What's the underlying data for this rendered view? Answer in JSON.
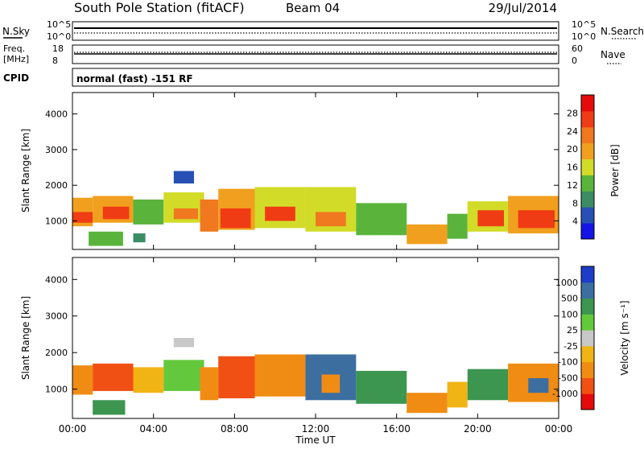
{
  "header": {
    "station": "South Pole Station (fitACF)",
    "beam": "Beam 04",
    "date": "29/Jul/2014"
  },
  "top_panels": {
    "nsky_label": "N.Sky",
    "nsearch_label": "N.Search",
    "nsky_ticks": [
      "10^5",
      "10^0"
    ],
    "nsearch_ticks": [
      "10^5",
      "10^0"
    ],
    "freq_label_1": "Freq.",
    "freq_label_2": "[MHz]",
    "freq_ticks": [
      "18",
      "8"
    ],
    "nave_label": "Nave",
    "nave_ticks": [
      "60",
      "0"
    ],
    "cpid_label": "CPID",
    "cpid_text": "normal (fast) -151 RF"
  },
  "colors": {
    "power": [
      "#1414e6",
      "#2850b4",
      "#3c8c64",
      "#5ab43c",
      "#d2dc28",
      "#f0a01e",
      "#f0781e",
      "#f03c14",
      "#e60a0a"
    ],
    "velocity": [
      "#e60a0a",
      "#f05014",
      "#f08c14",
      "#f0b414",
      "#c8c8c8",
      "#64c83c",
      "#3c9650",
      "#3c6ea0",
      "#1e3cc8"
    ]
  },
  "chart_data": [
    {
      "type": "heatmap",
      "name": "power",
      "ylabel": "Slant Range [km]",
      "ylim": [
        200,
        4600
      ],
      "yticks": [
        "1000",
        "2000",
        "3000",
        "4000"
      ],
      "xlim_hours": [
        0,
        24
      ],
      "colorbar_label": "Power [dB]",
      "colorbar_ticks": [
        "4",
        "8",
        "12",
        "16",
        "20",
        "24",
        "28"
      ],
      "colorbar_range": [
        0,
        32
      ],
      "regions": [
        {
          "t0": 0.0,
          "t1": 1.0,
          "r0": 850,
          "r1": 1650,
          "v": 18
        },
        {
          "t0": 0.0,
          "t1": 1.0,
          "r0": 950,
          "r1": 1250,
          "v": 26
        },
        {
          "t0": 1.0,
          "t1": 3.0,
          "r0": 950,
          "r1": 1700,
          "v": 20
        },
        {
          "t0": 1.5,
          "t1": 2.8,
          "r0": 1050,
          "r1": 1400,
          "v": 25
        },
        {
          "t0": 3.0,
          "t1": 4.5,
          "r0": 900,
          "r1": 1600,
          "v": 14
        },
        {
          "t0": 4.5,
          "t1": 6.5,
          "r0": 950,
          "r1": 1800,
          "v": 16
        },
        {
          "t0": 5.0,
          "t1": 6.2,
          "r0": 1050,
          "r1": 1350,
          "v": 22
        },
        {
          "t0": 0.8,
          "t1": 2.5,
          "r0": 300,
          "r1": 700,
          "v": 12
        },
        {
          "t0": 3.0,
          "t1": 3.6,
          "r0": 400,
          "r1": 650,
          "v": 8
        },
        {
          "t0": 5.0,
          "t1": 6.0,
          "r0": 2050,
          "r1": 2400,
          "v": 6
        },
        {
          "t0": 6.3,
          "t1": 7.2,
          "r0": 700,
          "r1": 1600,
          "v": 24
        },
        {
          "t0": 7.2,
          "t1": 9.0,
          "r0": 750,
          "r1": 1900,
          "v": 18
        },
        {
          "t0": 7.3,
          "t1": 8.8,
          "r0": 800,
          "r1": 1350,
          "v": 28
        },
        {
          "t0": 9.0,
          "t1": 11.5,
          "r0": 800,
          "r1": 1950,
          "v": 17
        },
        {
          "t0": 9.5,
          "t1": 11.0,
          "r0": 1000,
          "r1": 1400,
          "v": 26
        },
        {
          "t0": 11.5,
          "t1": 14.0,
          "r0": 700,
          "r1": 1950,
          "v": 15
        },
        {
          "t0": 12.0,
          "t1": 13.5,
          "r0": 850,
          "r1": 1250,
          "v": 24
        },
        {
          "t0": 14.0,
          "t1": 16.5,
          "r0": 600,
          "r1": 1500,
          "v": 12
        },
        {
          "t0": 16.5,
          "t1": 18.5,
          "r0": 350,
          "r1": 900,
          "v": 19
        },
        {
          "t0": 18.5,
          "t1": 19.5,
          "r0": 500,
          "r1": 1200,
          "v": 12
        },
        {
          "t0": 19.5,
          "t1": 21.5,
          "r0": 700,
          "r1": 1550,
          "v": 17
        },
        {
          "t0": 20.0,
          "t1": 21.3,
          "r0": 850,
          "r1": 1300,
          "v": 26
        },
        {
          "t0": 21.5,
          "t1": 24.0,
          "r0": 650,
          "r1": 1700,
          "v": 18
        },
        {
          "t0": 22.0,
          "t1": 23.8,
          "r0": 800,
          "r1": 1300,
          "v": 28
        }
      ]
    },
    {
      "type": "heatmap",
      "name": "velocity",
      "ylabel": "Slant Range [km]",
      "ylim": [
        200,
        4600
      ],
      "yticks": [
        "1000",
        "2000",
        "3000",
        "4000"
      ],
      "xlim_hours": [
        0,
        24
      ],
      "xticks": [
        "00:00",
        "04:00",
        "08:00",
        "12:00",
        "16:00",
        "20:00",
        "00:00"
      ],
      "xlabel": "Time UT",
      "colorbar_label": "Velocity [m s⁻¹]",
      "colorbar_ticks": [
        "1000",
        "500",
        "100",
        "25",
        "-25",
        "-100",
        "-500",
        "-1000"
      ],
      "regions": [
        {
          "t0": 0.0,
          "t1": 1.0,
          "r0": 850,
          "r1": 1650,
          "v": 2
        },
        {
          "t0": 1.0,
          "t1": 3.0,
          "r0": 950,
          "r1": 1700,
          "v": 1
        },
        {
          "t0": 1.0,
          "t1": 2.6,
          "r0": 300,
          "r1": 700,
          "v": 6
        },
        {
          "t0": 3.0,
          "t1": 4.5,
          "r0": 900,
          "r1": 1600,
          "v": 3
        },
        {
          "t0": 4.5,
          "t1": 6.5,
          "r0": 950,
          "r1": 1800,
          "v": 5
        },
        {
          "t0": 5.0,
          "t1": 6.0,
          "r0": 2150,
          "r1": 2400,
          "v": 4
        },
        {
          "t0": 6.3,
          "t1": 7.2,
          "r0": 700,
          "r1": 1600,
          "v": 2
        },
        {
          "t0": 7.2,
          "t1": 9.0,
          "r0": 750,
          "r1": 1900,
          "v": 1
        },
        {
          "t0": 9.0,
          "t1": 11.5,
          "r0": 800,
          "r1": 1950,
          "v": 2
        },
        {
          "t0": 11.5,
          "t1": 14.0,
          "r0": 700,
          "r1": 1950,
          "v": 7
        },
        {
          "t0": 12.3,
          "t1": 13.2,
          "r0": 900,
          "r1": 1400,
          "v": 2
        },
        {
          "t0": 14.0,
          "t1": 16.5,
          "r0": 600,
          "r1": 1500,
          "v": 6
        },
        {
          "t0": 16.5,
          "t1": 18.5,
          "r0": 350,
          "r1": 900,
          "v": 2
        },
        {
          "t0": 18.5,
          "t1": 19.5,
          "r0": 500,
          "r1": 1200,
          "v": 3
        },
        {
          "t0": 19.5,
          "t1": 21.5,
          "r0": 700,
          "r1": 1550,
          "v": 6
        },
        {
          "t0": 21.5,
          "t1": 24.0,
          "r0": 650,
          "r1": 1700,
          "v": 2
        },
        {
          "t0": 22.5,
          "t1": 23.5,
          "r0": 900,
          "r1": 1300,
          "v": 7
        }
      ]
    }
  ]
}
